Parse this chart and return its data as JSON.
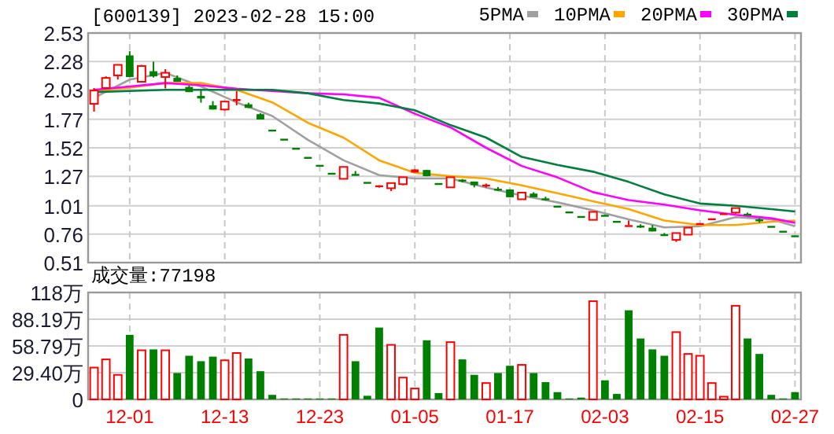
{
  "chart_data": [
    {
      "type": "candlestick",
      "title": "[600139] 2023-02-28 15:00",
      "grid": true,
      "legend": "top right",
      "categories": [
        null,
        null,
        null,
        null,
        null,
        null,
        null,
        null,
        null,
        null,
        null,
        null,
        null,
        null,
        null,
        null,
        null,
        null,
        null,
        null,
        null,
        null,
        null,
        null,
        null,
        null,
        null,
        null,
        null,
        null,
        null,
        null,
        null,
        null,
        null,
        null,
        null,
        null,
        null,
        null,
        null,
        null,
        null,
        null,
        null,
        null,
        null,
        null,
        null,
        null,
        null,
        null,
        null,
        null,
        null,
        null,
        null,
        null,
        null,
        null
      ],
      "ylim": [
        0.51,
        2.53
      ],
      "yticks": [
        2.53,
        2.28,
        2.03,
        1.77,
        1.52,
        1.27,
        1.01,
        0.76,
        0.51
      ],
      "ohlc": [
        [
          1.907,
          2.046,
          1.838,
          2.024
        ],
        [
          2.046,
          2.149,
          2.038,
          2.135
        ],
        [
          2.157,
          2.25,
          2.121,
          2.25
        ],
        [
          2.333,
          2.37,
          2.143,
          2.143
        ],
        [
          2.101,
          2.25,
          2.101,
          2.24
        ],
        [
          2.194,
          2.278,
          2.139,
          2.149
        ],
        [
          2.143,
          2.212,
          2.042,
          2.18
        ],
        [
          2.135,
          2.157,
          2.101,
          2.101
        ],
        [
          2.056,
          2.069,
          2.01,
          2.01
        ],
        [
          1.977,
          2.032,
          1.917,
          1.954
        ],
        [
          1.894,
          1.931,
          1.857,
          1.857
        ],
        [
          1.857,
          1.927,
          1.848,
          1.927
        ],
        [
          1.931,
          2.018,
          1.894,
          1.949
        ],
        [
          1.903,
          1.917,
          1.871,
          1.871
        ],
        [
          1.816,
          1.824,
          1.769,
          1.769
        ],
        [
          1.68,
          1.68,
          1.68,
          1.68
        ],
        [
          1.6,
          1.6,
          1.6,
          1.6
        ],
        [
          1.52,
          1.52,
          1.52,
          1.52
        ],
        [
          1.44,
          1.44,
          1.44,
          1.44
        ],
        [
          1.37,
          1.37,
          1.37,
          1.37
        ],
        [
          1.3,
          1.3,
          1.3,
          1.3
        ],
        [
          1.247,
          1.352,
          1.247,
          1.352
        ],
        [
          1.29,
          1.316,
          1.283,
          1.283
        ],
        [
          1.22,
          1.22,
          1.22,
          1.22
        ],
        [
          1.19,
          1.19,
          1.17,
          1.19
        ],
        [
          1.164,
          1.21,
          1.14,
          1.21
        ],
        [
          1.2,
          1.261,
          1.19,
          1.261
        ],
        [
          1.303,
          1.33,
          1.303,
          1.33
        ],
        [
          1.325,
          1.325,
          1.27,
          1.27
        ],
        [
          1.21,
          1.21,
          1.21,
          1.21
        ],
        [
          1.172,
          1.261,
          1.172,
          1.261
        ],
        [
          1.24,
          1.245,
          1.215,
          1.223
        ],
        [
          1.223,
          1.223,
          1.172,
          1.191
        ],
        [
          1.19,
          1.205,
          1.17,
          1.196
        ],
        [
          1.16,
          1.175,
          1.14,
          1.154
        ],
        [
          1.154,
          1.154,
          1.085,
          1.085
        ],
        [
          1.067,
          1.126,
          1.067,
          1.126
        ],
        [
          1.117,
          1.13,
          1.085,
          1.085
        ],
        [
          1.075,
          1.09,
          1.06,
          1.071
        ],
        [
          1.01,
          1.01,
          1.01,
          1.01
        ],
        [
          0.96,
          0.96,
          0.96,
          0.96
        ],
        [
          0.92,
          0.92,
          0.92,
          0.92
        ],
        [
          0.886,
          0.956,
          0.886,
          0.956
        ],
        [
          0.93,
          0.93,
          0.918,
          0.918
        ],
        [
          0.877,
          0.877,
          0.877,
          0.877
        ],
        [
          0.84,
          0.88,
          0.84,
          0.84
        ],
        [
          0.835,
          0.848,
          0.815,
          0.83
        ],
        [
          0.817,
          0.84,
          0.784,
          0.784
        ],
        [
          0.76,
          0.77,
          0.75,
          0.756
        ],
        [
          0.71,
          0.77,
          0.692,
          0.77
        ],
        [
          0.756,
          0.817,
          0.756,
          0.817
        ],
        [
          0.858,
          0.858,
          0.858,
          0.858
        ],
        [
          0.9,
          0.9,
          0.9,
          0.9
        ],
        [
          0.945,
          0.945,
          0.945,
          0.945
        ],
        [
          0.95,
          0.99,
          0.94,
          0.99
        ],
        [
          0.94,
          0.95,
          0.93,
          0.932
        ],
        [
          0.89,
          0.9,
          0.86,
          0.877
        ],
        [
          0.833,
          0.833,
          0.833,
          0.833
        ],
        [
          0.79,
          0.79,
          0.79,
          0.79
        ],
        [
          0.75,
          0.75,
          0.75,
          0.75
        ]
      ],
      "colors": [
        "#ff0000",
        "#ff0000",
        "#ff0000",
        "#008000",
        "#ff0000",
        "#008000",
        "#ff0000",
        "#008000",
        "#008000",
        "#008000",
        "#008000",
        "#ff0000",
        "#ff0000",
        "#008000",
        "#008000",
        "#008000",
        "#008000",
        "#008000",
        "#008000",
        "#008000",
        "#008000",
        "#ff0000",
        "#008000",
        "#008000",
        "#ff0000",
        "#ff0000",
        "#ff0000",
        "#ff0000",
        "#008000",
        "#008000",
        "#ff0000",
        "#008000",
        "#008000",
        "#ff0000",
        "#008000",
        "#008000",
        "#ff0000",
        "#008000",
        "#008000",
        "#008000",
        "#008000",
        "#008000",
        "#ff0000",
        "#008000",
        "#008000",
        "#ff0000",
        "#008000",
        "#008000",
        "#008000",
        "#ff0000",
        "#ff0000",
        "#ff0000",
        "#ff0000",
        "#ff0000",
        "#ff0000",
        "#008000",
        "#008000",
        "#008000",
        "#008000",
        "#008000"
      ],
      "series": [
        {
          "type": "line",
          "name": "5PMA",
          "color": "#a0a0a0",
          "values": [
            1.96,
            null,
            null,
            2.12,
            null,
            null,
            2.18,
            null,
            null,
            2.06,
            null,
            null,
            1.92,
            null,
            null,
            1.8,
            null,
            null,
            1.59,
            null,
            null,
            1.41,
            null,
            null,
            1.28,
            null,
            null,
            1.25,
            null,
            null,
            1.25,
            null,
            null,
            1.17,
            null,
            null,
            1.1,
            null,
            null,
            1.04,
            null,
            null,
            0.97,
            null,
            null,
            0.89,
            null,
            null,
            0.82,
            null,
            null,
            0.83,
            null,
            null,
            0.91,
            null,
            null,
            0.89,
            null,
            0.83
          ]
        },
        {
          "type": "line",
          "name": "10PMA",
          "color": "#ffa500",
          "values": [
            2.02,
            null,
            null,
            2.05,
            null,
            null,
            2.09,
            null,
            null,
            2.09,
            null,
            null,
            2.03,
            null,
            null,
            1.92,
            null,
            null,
            1.74,
            null,
            null,
            1.61,
            null,
            null,
            1.41,
            null,
            null,
            1.3,
            null,
            null,
            1.27,
            null,
            null,
            1.25,
            null,
            null,
            1.19,
            null,
            null,
            1.12,
            null,
            null,
            1.05,
            null,
            null,
            0.98,
            null,
            null,
            0.88,
            null,
            null,
            0.84,
            null,
            null,
            0.84,
            null,
            null,
            0.87,
            null,
            0.88
          ]
        },
        {
          "type": "line",
          "name": "20PMA",
          "color": "#ff00ff",
          "values": [
            2.03,
            null,
            null,
            2.06,
            null,
            null,
            2.09,
            null,
            null,
            2.07,
            null,
            null,
            2.04,
            null,
            null,
            2.02,
            null,
            null,
            2.0,
            null,
            null,
            1.99,
            null,
            null,
            1.96,
            null,
            null,
            1.82,
            null,
            null,
            1.7,
            null,
            null,
            1.52,
            null,
            null,
            1.36,
            null,
            null,
            1.26,
            null,
            null,
            1.13,
            null,
            null,
            1.06,
            null,
            null,
            1.02,
            null,
            null,
            0.97,
            null,
            null,
            0.93,
            null,
            null,
            0.9,
            null,
            0.86
          ]
        },
        {
          "type": "line",
          "name": "30PMA",
          "color": "#007f3f",
          "values": [
            2.01,
            null,
            null,
            2.02,
            null,
            null,
            2.03,
            null,
            null,
            2.03,
            null,
            null,
            2.03,
            null,
            null,
            2.03,
            null,
            null,
            2.0,
            null,
            null,
            1.94,
            null,
            null,
            1.91,
            null,
            null,
            1.85,
            null,
            null,
            1.72,
            null,
            null,
            1.61,
            null,
            null,
            1.44,
            null,
            null,
            1.37,
            null,
            null,
            1.31,
            null,
            null,
            1.22,
            null,
            null,
            1.11,
            null,
            null,
            1.03,
            null,
            null,
            1.01,
            null,
            null,
            0.98,
            null,
            0.96
          ]
        }
      ]
    },
    {
      "type": "bar",
      "title": "成交量:77198",
      "grid": true,
      "categories": [
        null,
        null,
        null,
        "12-01",
        null,
        null,
        null,
        null,
        null,
        null,
        null,
        "12-13",
        null,
        null,
        null,
        null,
        null,
        null,
        null,
        "12-23",
        null,
        null,
        null,
        null,
        null,
        null,
        null,
        "01-05",
        null,
        null,
        null,
        null,
        null,
        null,
        null,
        "01-17",
        null,
        null,
        null,
        null,
        null,
        null,
        null,
        "02-03",
        null,
        null,
        null,
        null,
        null,
        null,
        null,
        "02-15",
        null,
        null,
        null,
        null,
        null,
        null,
        null,
        "02-27"
      ],
      "ylim": [
        0,
        117.59
      ],
      "yticks": [
        0,
        {
          "value": 29.4,
          "label": "29.40万"
        },
        {
          "value": 58.79,
          "label": "58.79万"
        },
        {
          "value": 88.19,
          "label": "88.19万"
        },
        {
          "value": 117.59,
          "label": "118万"
        }
      ],
      "values": [
        35,
        44,
        27,
        71,
        54,
        55,
        54,
        29,
        48,
        42,
        47,
        43,
        51,
        45,
        31,
        5,
        1,
        1,
        1,
        1,
        1,
        71,
        42,
        4,
        79,
        60,
        24,
        12,
        65,
        7,
        63,
        44,
        27,
        18,
        29,
        37,
        38,
        29,
        19,
        8,
        1,
        2,
        108,
        21,
        6,
        98,
        67,
        55,
        48,
        74,
        50,
        48,
        18,
        3,
        103,
        67,
        50,
        5,
        1,
        8
      ],
      "colors": [
        "#ff0000",
        "#ff0000",
        "#ff0000",
        "#008000",
        "#ff0000",
        "#008000",
        "#ff0000",
        "#008000",
        "#008000",
        "#008000",
        "#008000",
        "#ff0000",
        "#ff0000",
        "#008000",
        "#008000",
        "#008000",
        "#008000",
        "#008000",
        "#008000",
        "#008000",
        "#008000",
        "#ff0000",
        "#008000",
        "#008000",
        "#008000",
        "#ff0000",
        "#ff0000",
        "#ff0000",
        "#008000",
        "#008000",
        "#ff0000",
        "#008000",
        "#008000",
        "#ff0000",
        "#008000",
        "#008000",
        "#ff0000",
        "#008000",
        "#008000",
        "#008000",
        "#008000",
        "#008000",
        "#ff0000",
        "#008000",
        "#008000",
        "#008000",
        "#008000",
        "#008000",
        "#008000",
        "#ff0000",
        "#ff0000",
        "#ff0000",
        "#ff0000",
        "#ff0000",
        "#ff0000",
        "#008000",
        "#008000",
        "#008000",
        "#008000",
        "#008000"
      ]
    }
  ]
}
